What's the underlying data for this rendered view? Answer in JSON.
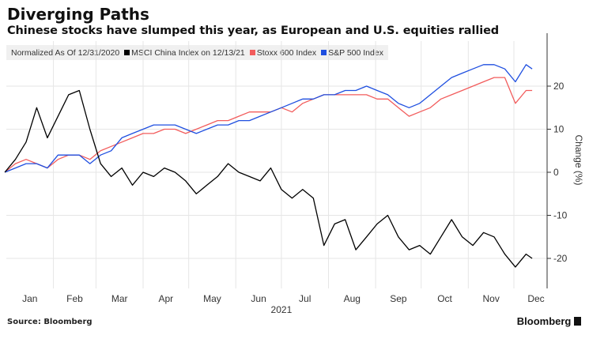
{
  "title": "Diverging Paths",
  "subtitle": "Chinese stocks have slumped this year, as European and U.S. equities rallied",
  "source": "Source: Bloomberg",
  "logo": "Bloomberg",
  "chart_data": {
    "type": "line",
    "legend_title": "Normalized As Of 12/31/2020",
    "legend_placement": "top-left",
    "ylabel": "Change (%)",
    "xlabel": "2021",
    "y_axis_side": "right",
    "ylim": [
      -27,
      30
    ],
    "yticks": [
      20,
      10,
      0,
      -10,
      -20
    ],
    "xtick_labels": [
      "Jan",
      "Feb",
      "Mar",
      "Apr",
      "May",
      "Jun",
      "Jul",
      "Aug",
      "Sep",
      "Oct",
      "Nov",
      "Dec"
    ],
    "grid": true,
    "x": [
      "2020-12-31",
      "2021-01-07",
      "2021-01-14",
      "2021-01-21",
      "2021-01-28",
      "2021-02-04",
      "2021-02-11",
      "2021-02-18",
      "2021-02-25",
      "2021-03-04",
      "2021-03-11",
      "2021-03-18",
      "2021-03-25",
      "2021-04-01",
      "2021-04-08",
      "2021-04-15",
      "2021-04-22",
      "2021-04-29",
      "2021-05-06",
      "2021-05-13",
      "2021-05-20",
      "2021-05-27",
      "2021-06-03",
      "2021-06-10",
      "2021-06-17",
      "2021-06-24",
      "2021-07-01",
      "2021-07-08",
      "2021-07-15",
      "2021-07-22",
      "2021-07-29",
      "2021-08-05",
      "2021-08-12",
      "2021-08-19",
      "2021-08-26",
      "2021-09-02",
      "2021-09-09",
      "2021-09-16",
      "2021-09-23",
      "2021-09-30",
      "2021-10-07",
      "2021-10-14",
      "2021-10-21",
      "2021-10-28",
      "2021-11-04",
      "2021-11-11",
      "2021-11-18",
      "2021-11-25",
      "2021-12-02",
      "2021-12-09",
      "2021-12-13"
    ],
    "series": [
      {
        "name": "MSCI China Index on 12/13/21",
        "color": "#000000",
        "values": [
          0,
          3,
          7,
          15,
          8,
          13,
          18,
          19,
          10,
          2,
          -1,
          1,
          -3,
          0,
          -1,
          1,
          0,
          -2,
          -5,
          -3,
          -1,
          2,
          0,
          -1,
          -2,
          1,
          -4,
          -6,
          -4,
          -6,
          -17,
          -12,
          -11,
          -18,
          -15,
          -12,
          -10,
          -15,
          -18,
          -17,
          -19,
          -15,
          -11,
          -15,
          -17,
          -14,
          -15,
          -19,
          -22,
          -19,
          -20
        ]
      },
      {
        "name": "Stoxx 600 Index",
        "color": "#f25c5c",
        "values": [
          0,
          2,
          3,
          2,
          1,
          3,
          4,
          4,
          3,
          5,
          6,
          7,
          8,
          9,
          9,
          10,
          10,
          9,
          10,
          11,
          12,
          12,
          13,
          14,
          14,
          14,
          15,
          14,
          16,
          17,
          18,
          18,
          18,
          18,
          18,
          17,
          17,
          15,
          13,
          14,
          15,
          17,
          18,
          19,
          20,
          21,
          22,
          22,
          16,
          19,
          19
        ]
      },
      {
        "name": "S&P 500 Index",
        "color": "#1f4fe0",
        "values": [
          0,
          1,
          2,
          2,
          1,
          4,
          4,
          4,
          2,
          4,
          5,
          8,
          9,
          10,
          11,
          11,
          11,
          10,
          9,
          10,
          11,
          11,
          12,
          12,
          13,
          14,
          15,
          16,
          17,
          17,
          18,
          18,
          19,
          19,
          20,
          19,
          18,
          16,
          15,
          16,
          18,
          20,
          22,
          23,
          24,
          25,
          25,
          24,
          21,
          25,
          24
        ]
      }
    ]
  }
}
